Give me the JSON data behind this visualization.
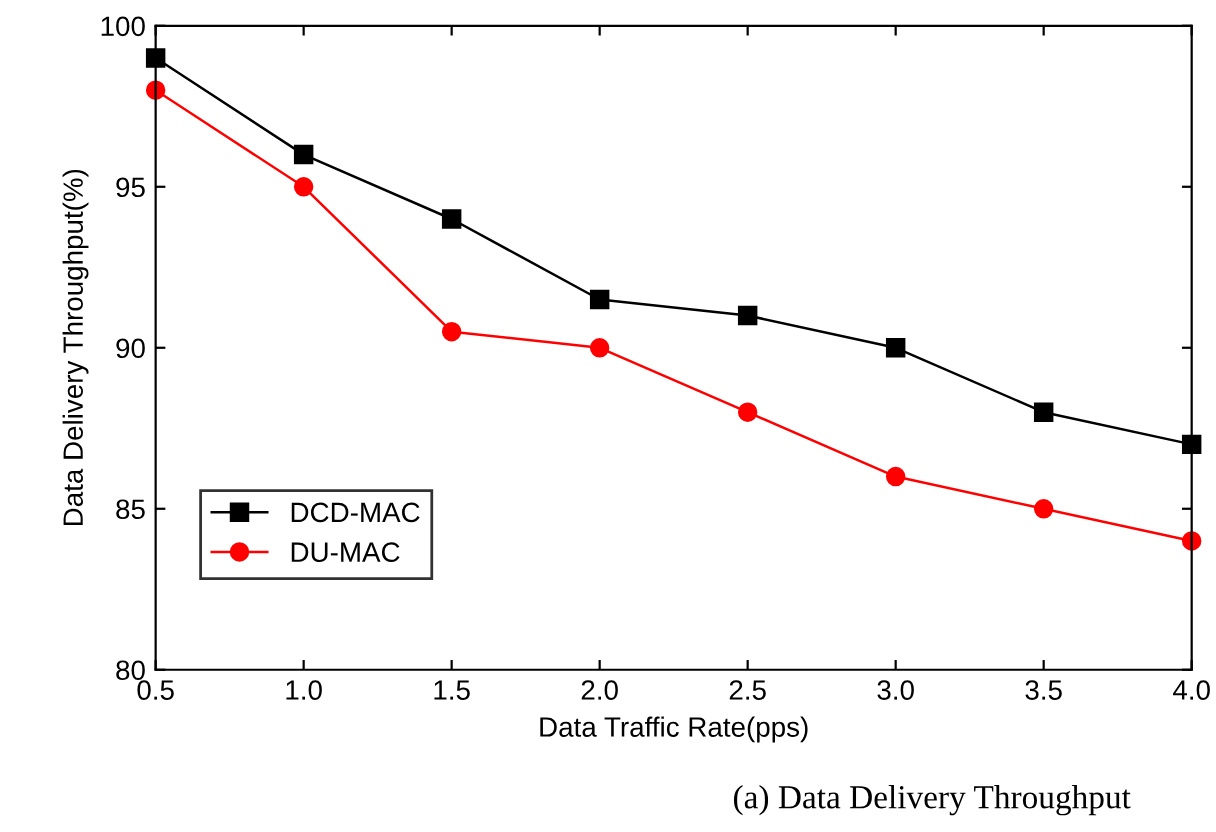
{
  "chart_data": {
    "type": "line",
    "xlabel": "Data Traffic Rate(pps)",
    "ylabel": "Data Delivery Throughput(%)",
    "x": [
      0.5,
      1.0,
      1.5,
      2.0,
      2.5,
      3.0,
      3.5,
      4.0
    ],
    "series": [
      {
        "name": "DCD-MAC",
        "color": "#000000",
        "marker": "square",
        "values": [
          99,
          96,
          94,
          91.5,
          91,
          90,
          88,
          87
        ]
      },
      {
        "name": "DU-MAC",
        "color": "#ff0000",
        "marker": "circle",
        "values": [
          98,
          95,
          90.5,
          90,
          88,
          86,
          85,
          84
        ]
      }
    ],
    "xlim": [
      0.5,
      4.0
    ],
    "xticks": [
      {
        "value": 0.5,
        "label": "0.5"
      },
      {
        "value": 1.0,
        "label": "1.0"
      },
      {
        "value": 1.5,
        "label": "1.5"
      },
      {
        "value": 2.0,
        "label": "2.0"
      },
      {
        "value": 2.5,
        "label": "2.5"
      },
      {
        "value": 3.0,
        "label": "3.0"
      },
      {
        "value": 3.5,
        "label": "3.5"
      },
      {
        "value": 4.0,
        "label": "4.0"
      }
    ],
    "ylim": [
      80,
      100
    ],
    "yticks": [
      80,
      85,
      90,
      95,
      100
    ],
    "grid": false,
    "legend": "bottom left",
    "line_style": "solid",
    "annotations": [
      "(a) Data Delivery Throughput"
    ]
  }
}
